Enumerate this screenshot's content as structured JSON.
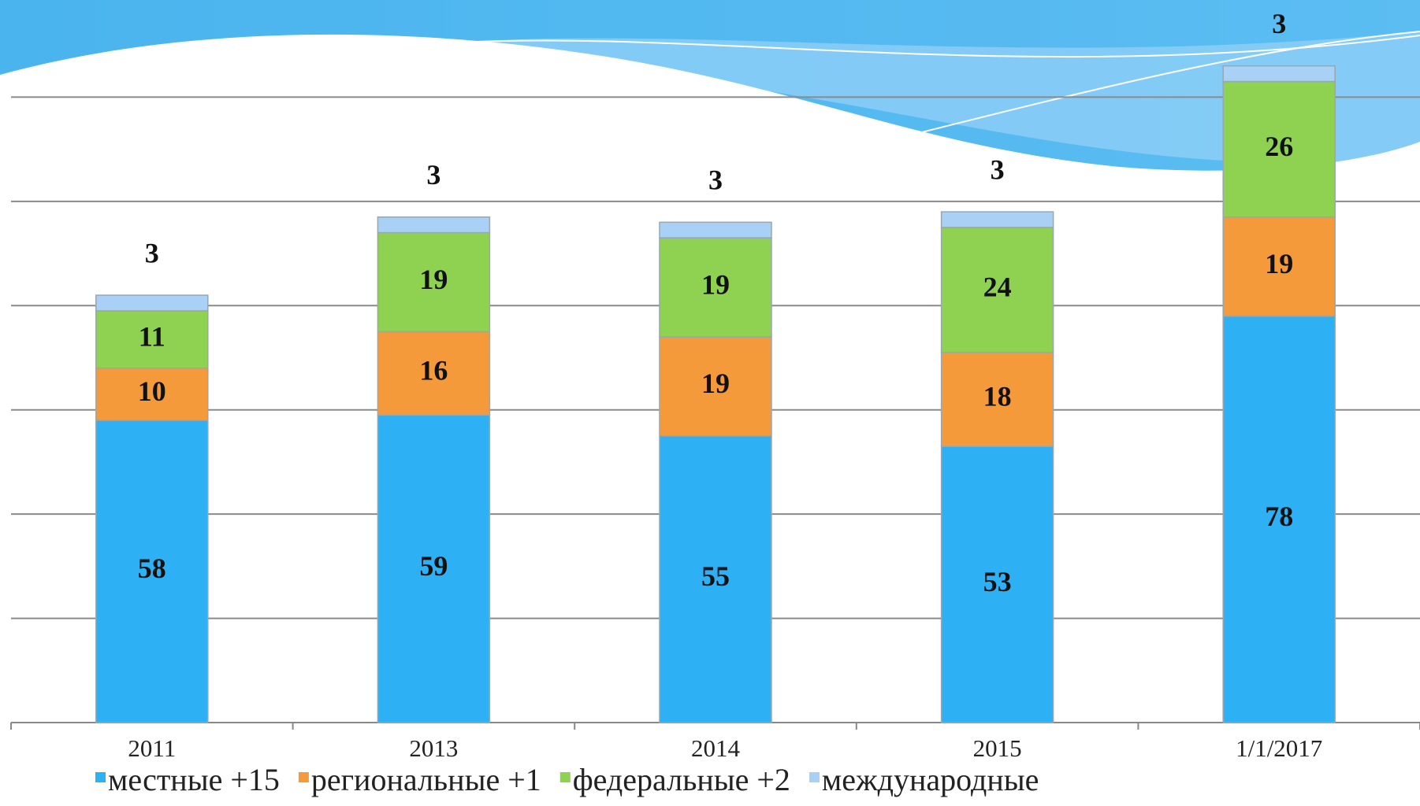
{
  "chart_data": {
    "type": "stacked_bar",
    "categories": [
      "2011",
      "2013",
      "2014",
      "2015",
      "1/1/2017"
    ],
    "series": [
      {
        "name": "местные +15",
        "color": "#2eb0f5",
        "values": [
          58,
          59,
          55,
          53,
          78
        ]
      },
      {
        "name": "региональные +1",
        "color": "#f59a3a",
        "values": [
          10,
          16,
          19,
          18,
          19
        ]
      },
      {
        "name": "федеральные +2",
        "color": "#8fd150",
        "values": [
          11,
          19,
          19,
          24,
          26
        ]
      },
      {
        "name": "международные",
        "color": "#a9d0f5",
        "values": [
          3,
          3,
          3,
          3,
          3
        ]
      }
    ],
    "ylim": [
      0,
      140
    ],
    "yticks": [
      0,
      20,
      40,
      60,
      80,
      100,
      120
    ],
    "grid": true,
    "legend": "bottom"
  }
}
